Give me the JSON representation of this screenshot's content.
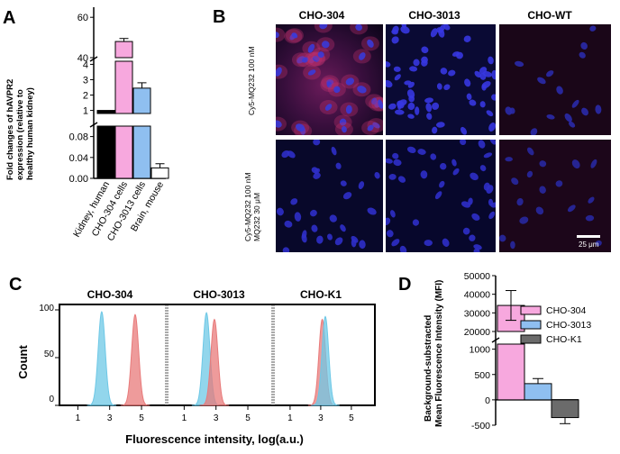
{
  "panel_a": {
    "letter": "A",
    "ylabel": "Fold changes of hAVPR2 expression (relative to healthy human kidney)",
    "ylabel_line1": "Fold changes of hAVPR2",
    "ylabel_line2": "expression (relative to",
    "ylabel_line3": "healthy human kidney)",
    "tick_labels_upper": [
      "60",
      "40"
    ],
    "tick_labels_mid": [
      "4",
      "3",
      "2",
      "1"
    ],
    "tick_labels_lower": [
      "0.08",
      "0.04",
      "0.00"
    ],
    "categories": [
      "Kidney, human",
      "CHO-304 cells",
      "CHO-3013 cells",
      "Brain, mouse"
    ]
  },
  "panel_b": {
    "letter": "B",
    "col_titles": [
      "CHO-304",
      "CHO-3013",
      "CHO-WT"
    ],
    "row_labels": [
      "Cy5-MQ232 100 nM",
      "Cy5-MQ232 100 nM MQ232 30 μM"
    ],
    "row2_line1": "Cy5-MQ232 100 nM",
    "row2_line2": "MQ232 30 μM",
    "scale_bar": "25 μm"
  },
  "panel_c": {
    "letter": "C",
    "titles": [
      "CHO-304",
      "CHO-3013",
      "CHO-K1"
    ],
    "ylabel": "Count",
    "xlabel": "Fluorescence intensity, log(a.u.)",
    "ytick_labels": [
      "100",
      "50",
      "0"
    ],
    "xtick_labels": [
      "1",
      "3",
      "5"
    ]
  },
  "panel_d": {
    "letter": "D",
    "ylabel_line1": "Background-substracted",
    "ylabel_line2": "Mean Fluorescence Intensity (MFI)",
    "ytick_labels_upper": [
      "50000",
      "40000",
      "30000",
      "20000"
    ],
    "ytick_labels_lower": [
      "1000",
      "500",
      "0",
      "-500"
    ],
    "legend": [
      "CHO-304",
      "CHO-3013",
      "CHO-K1"
    ]
  },
  "colors": {
    "kidney": "#000000",
    "cho304": "#f7a8de",
    "cho3013": "#8fbff0",
    "brain": "#ffffff",
    "choK1": "#6b6b6b",
    "cyan_hist": "#6ec8e6",
    "red_hist": "#e87a7a"
  },
  "chart_data": [
    {
      "type": "bar",
      "panel": "A",
      "categories": [
        "Kidney, human",
        "CHO-304 cells",
        "CHO-3013 cells",
        "Brain, mouse"
      ],
      "values": [
        1.0,
        48.0,
        2.45,
        0.02
      ],
      "errors": [
        0,
        1.5,
        0.35,
        0.008
      ],
      "ylabel": "Fold changes of hAVPR2 expression (relative to healthy human kidney)",
      "axis_segments": [
        [
          0,
          0.1
        ],
        [
          0.8,
          4.2
        ],
        [
          40,
          65
        ]
      ]
    },
    {
      "type": "area",
      "panel": "C",
      "titles": [
        "CHO-304",
        "CHO-3013",
        "CHO-K1"
      ],
      "xlabel": "Fluorescence intensity, log(a.u.)",
      "ylabel": "Count",
      "ylim": [
        0,
        100
      ],
      "x_ticks": [
        1,
        3,
        5
      ],
      "subplots": [
        {
          "title": "CHO-304",
          "series": [
            {
              "peak": 2.2,
              "height": 98,
              "color": "cyan"
            },
            {
              "peak": 4.3,
              "height": 95,
              "color": "red"
            }
          ]
        },
        {
          "title": "CHO-3013",
          "series": [
            {
              "peak": 2.1,
              "height": 97,
              "color": "cyan"
            },
            {
              "peak": 2.6,
              "height": 90,
              "color": "red"
            }
          ]
        },
        {
          "title": "CHO-K1",
          "series": [
            {
              "peak": 2.8,
              "height": 90,
              "color": "red"
            },
            {
              "peak": 3.0,
              "height": 93,
              "color": "cyan"
            }
          ]
        }
      ]
    },
    {
      "type": "bar",
      "panel": "D",
      "categories": [
        "CHO-304",
        "CHO-3013",
        "CHO-K1"
      ],
      "values": [
        34000,
        320,
        -350
      ],
      "errors": [
        8000,
        100,
        120
      ],
      "ylabel": "Background-substracted Mean Fluorescence Intensity (MFI)",
      "axis_segments": [
        [
          -500,
          1100
        ],
        [
          20000,
          50000
        ]
      ]
    }
  ]
}
